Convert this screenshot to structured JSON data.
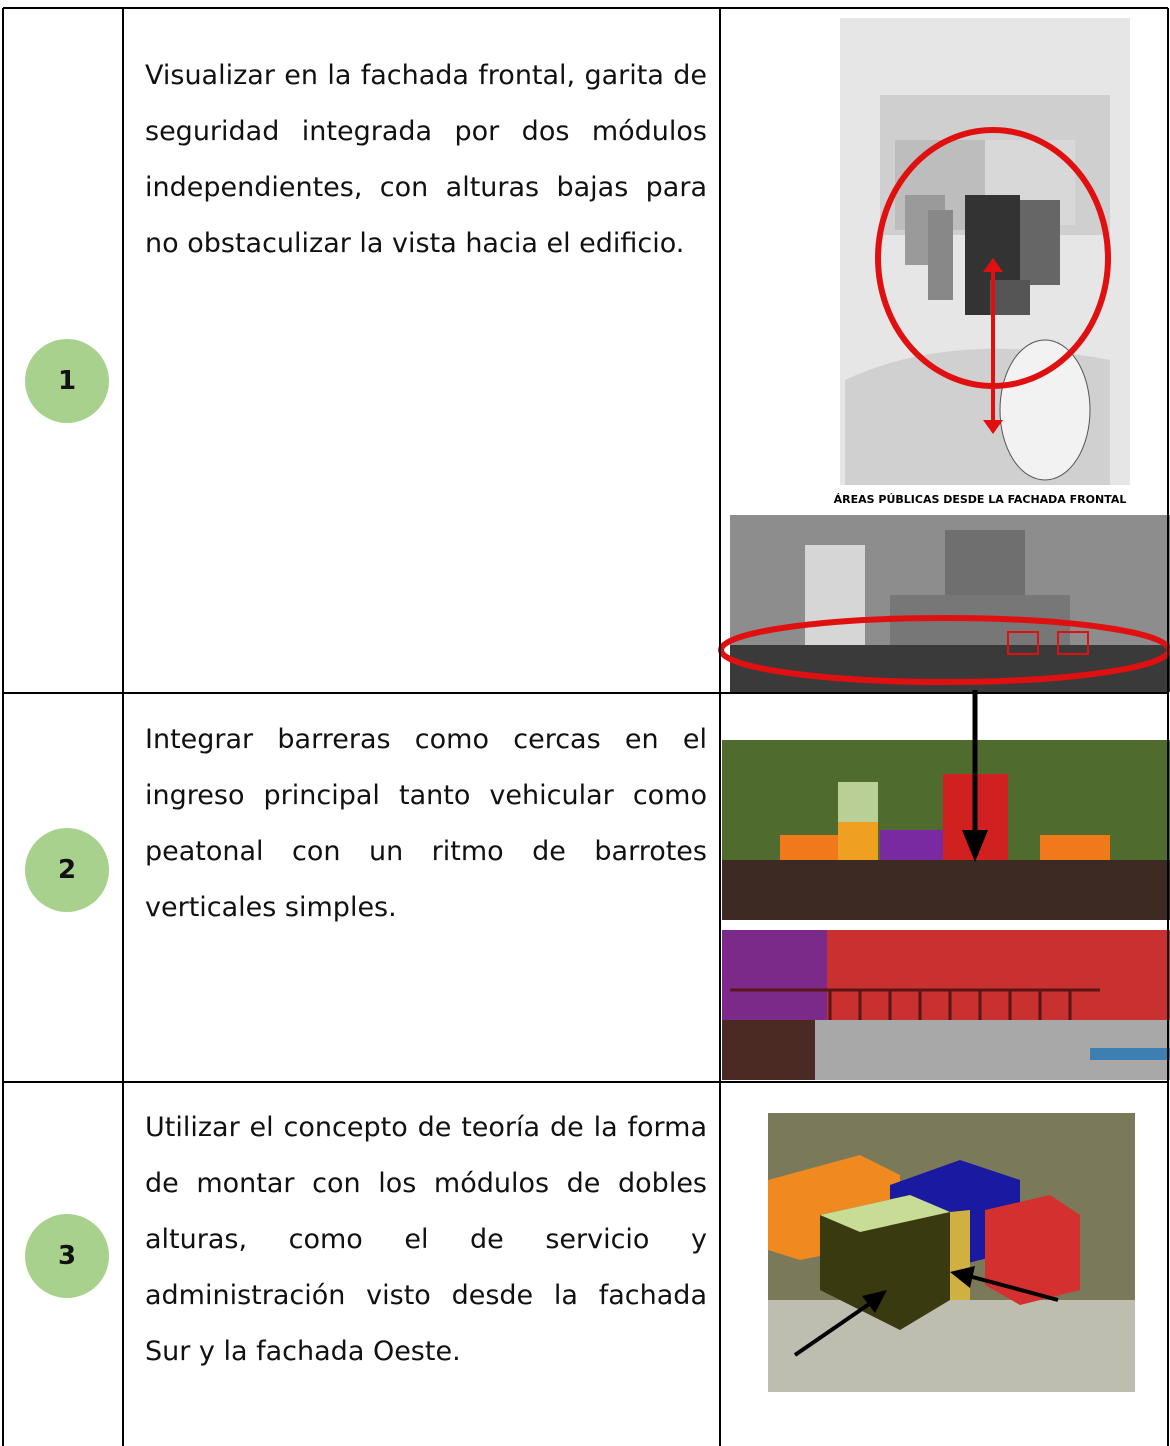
{
  "table": {
    "rows": [
      {
        "number": "1",
        "text": "Visualizar en la fachada frontal, garita de seguridad integrada por dos módulos independientes, con alturas bajas para no obstaculizar la vista hacia el edificio.",
        "caption": "ÁREAS PÚBLICAS DESDE LA FACHADA FRONTAL"
      },
      {
        "number": "2",
        "text": "Integrar barreras como cercas en el ingreso principal tanto vehicular como peatonal con un ritmo de barrotes verticales simples."
      },
      {
        "number": "3",
        "text": "Utilizar el concepto de teoría de la forma de montar con los módulos de dobles alturas, como el de servicio y administración visto desde la fachada Sur y la fachada Oeste."
      }
    ]
  }
}
